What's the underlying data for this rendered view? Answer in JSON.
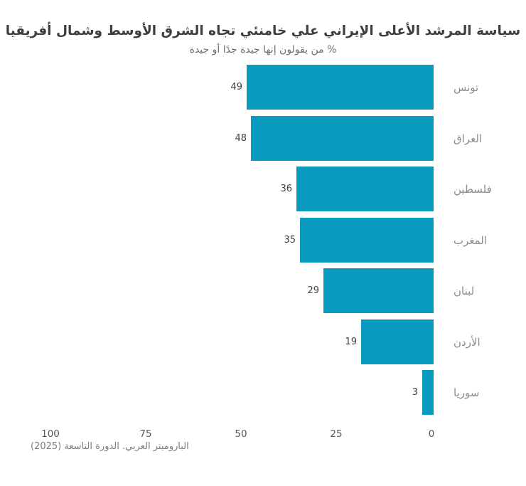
{
  "chart_data": {
    "type": "bar",
    "orientation": "horizontal-rtl",
    "title": "سياسة المرشد الأعلى الإيراني علي خامنئي تجاه الشرق الأوسط وشمال أفريقيا",
    "subtitle": "% من يقولون إنها جيدة جدًا أو جيدة",
    "categories": [
      "تونس",
      "العراق",
      "فلسطين",
      "المغرب",
      "لبنان",
      "الأردن",
      "سوريا"
    ],
    "values": [
      49,
      48,
      36,
      35,
      29,
      19,
      3
    ],
    "xlim": [
      0,
      100
    ],
    "x_ticks": [
      100,
      75,
      50,
      25,
      0
    ],
    "grid": false,
    "legend": false,
    "value_labels": true,
    "bar_color": "#0a9abd",
    "source": "الباروميتر العربي. الدورة التاسعة (2025)"
  }
}
